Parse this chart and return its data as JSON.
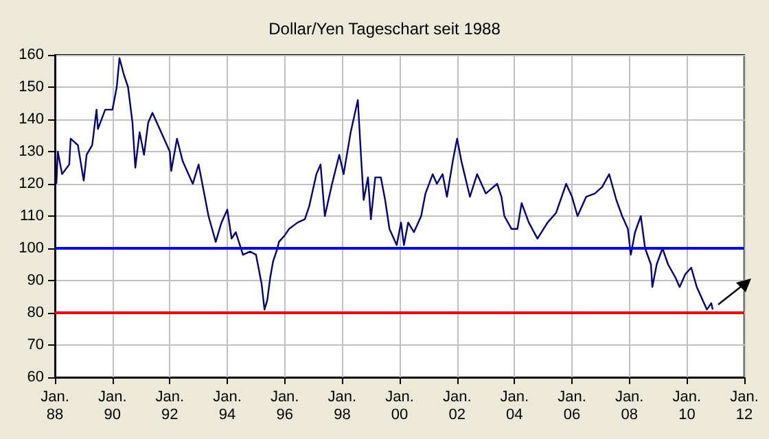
{
  "chart_data": {
    "type": "line",
    "title": "Dollar/Yen Tageschart seit 1988",
    "series": [
      {
        "color": "#000080",
        "x": [
          "1988-01-19",
          "1988-02-07",
          "1988-04-01",
          "1988-07-01",
          "1988-07-19",
          "1988-10-19",
          "1989-01-01",
          "1989-02-07",
          "1989-04-19",
          "1989-06-13",
          "1989-07-01",
          "1989-10-01",
          "1990-01-01",
          "1990-02-25",
          "1990-04-01",
          "1990-05-25",
          "1990-07-19",
          "1990-09-13",
          "1990-10-19",
          "1990-12-13",
          "1991-02-07",
          "1991-04-01",
          "1991-05-25",
          "1991-08-25",
          "1992-01-01",
          "1992-01-19",
          "1992-04-01",
          "1992-06-13",
          "1992-10-19",
          "1993-01-01",
          "1993-03-13",
          "1993-05-07",
          "1993-08-07",
          "1993-10-19",
          "1994-01-01",
          "1994-02-25",
          "1994-04-19",
          "1994-07-19",
          "1994-10-19",
          "1995-01-01",
          "1995-03-13",
          "1995-04-19",
          "1995-05-25",
          "1995-07-01",
          "1995-08-07",
          "1995-10-01",
          "1995-10-19",
          "1996-01-01",
          "1996-02-25",
          "1996-06-13",
          "1996-09-13",
          "1996-11-07",
          "1997-02-07",
          "1997-04-01",
          "1997-05-25",
          "1997-08-25",
          "1997-11-25",
          "1998-01-19",
          "1998-04-19",
          "1998-07-19",
          "1998-08-25",
          "1998-10-01",
          "1998-11-25",
          "1999-01-01",
          "1999-02-25",
          "1999-05-07",
          "1999-07-01",
          "1999-08-25",
          "1999-11-25",
          "2000-01-19",
          "2000-02-25",
          "2000-04-19",
          "2000-07-01",
          "2000-10-01",
          "2000-11-25",
          "2001-02-25",
          "2001-04-19",
          "2001-07-01",
          "2001-08-25",
          "2001-11-07",
          "2002-01-01",
          "2002-02-25",
          "2002-06-13",
          "2002-09-13",
          "2003-01-01",
          "2003-05-25",
          "2003-07-19",
          "2003-08-25",
          "2003-11-25",
          "2004-02-07",
          "2004-04-01",
          "2004-07-01",
          "2004-10-19",
          "2005-02-25",
          "2005-06-13",
          "2005-10-19",
          "2006-01-01",
          "2006-03-13",
          "2006-07-01",
          "2006-10-19",
          "2007-01-19",
          "2007-04-19",
          "2007-07-19",
          "2007-10-01",
          "2007-12-13",
          "2008-01-19",
          "2008-03-13",
          "2008-05-25",
          "2008-07-19",
          "2008-10-01",
          "2008-10-19",
          "2008-12-13",
          "2009-02-25",
          "2009-05-07",
          "2009-08-07",
          "2009-10-01",
          "2009-12-13",
          "2010-02-25",
          "2010-05-07",
          "2010-08-07",
          "2010-09-13",
          "2010-11-07",
          "2010-11-25"
        ],
        "values": [
          120,
          130,
          123,
          126,
          134,
          132,
          121,
          129,
          132,
          143,
          137,
          143,
          143,
          150,
          159,
          154,
          150,
          139,
          125,
          136,
          129,
          139,
          142,
          137,
          130,
          124,
          134,
          127,
          120,
          126,
          117,
          110,
          102,
          108,
          112,
          103,
          105,
          98,
          99,
          98,
          89,
          81,
          84,
          91,
          96,
          100,
          102,
          104,
          106,
          108,
          109,
          113,
          123,
          126,
          110,
          120,
          129,
          123,
          136,
          146,
          130,
          115,
          122,
          109,
          122,
          122,
          115,
          106,
          101,
          108,
          101,
          108,
          105,
          110,
          117,
          123,
          120,
          123,
          116,
          127,
          134,
          127,
          116,
          123,
          117,
          120,
          116,
          110,
          106,
          106,
          114,
          108,
          103,
          108,
          111,
          120,
          116,
          110,
          116,
          117,
          119,
          123,
          115,
          110,
          106,
          98,
          105,
          110,
          100,
          95,
          88,
          95,
          100,
          95,
          91,
          88,
          92,
          94,
          88,
          83,
          81,
          83,
          81
        ]
      }
    ],
    "xlim": [
      "1988-01",
      "2012-01"
    ],
    "xticks": [
      {
        "value": "1988-01",
        "label": "Jan.\n88"
      },
      {
        "value": "1990-01",
        "label": "Jan.\n90"
      },
      {
        "value": "1992-01",
        "label": "Jan.\n92"
      },
      {
        "value": "1994-01",
        "label": "Jan.\n94"
      },
      {
        "value": "1996-01",
        "label": "Jan.\n96"
      },
      {
        "value": "1998-01",
        "label": "Jan.\n98"
      },
      {
        "value": "2000-01",
        "label": "Jan.\n00"
      },
      {
        "value": "2002-01",
        "label": "Jan.\n02"
      },
      {
        "value": "2004-01",
        "label": "Jan.\n04"
      },
      {
        "value": "2006-01",
        "label": "Jan.\n06"
      },
      {
        "value": "2008-01",
        "label": "Jan.\n08"
      },
      {
        "value": "2010-01",
        "label": "Jan.\n10"
      },
      {
        "value": "2012-01",
        "label": "Jan.\n12"
      }
    ],
    "ylim": [
      60,
      160
    ],
    "yticks": [
      60,
      70,
      80,
      90,
      100,
      110,
      120,
      130,
      140,
      150,
      160
    ],
    "grid": true,
    "marker": "none",
    "line_style": "solid",
    "ref_lines": [
      {
        "axis": "y",
        "value": 100,
        "color": "#0000ff"
      },
      {
        "axis": "y",
        "value": 80,
        "color": "#ff0000"
      }
    ]
  }
}
